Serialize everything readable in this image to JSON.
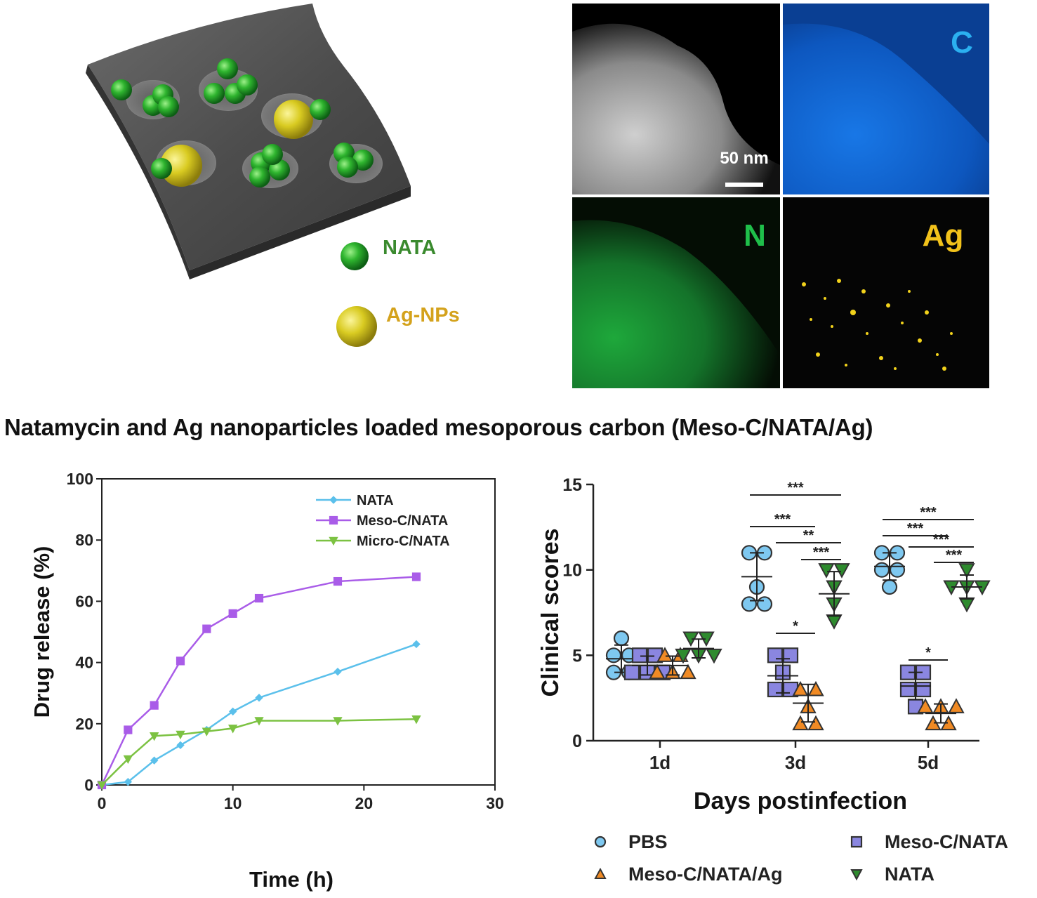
{
  "scheme": {
    "legend": [
      {
        "label": "NATA",
        "color": "#3a8a2e"
      },
      {
        "label": "Ag-NPs",
        "color": "#d4a21c"
      }
    ]
  },
  "eds": {
    "panels": [
      {
        "label": "",
        "bg": "#3a3a3a"
      },
      {
        "label": "C",
        "bg": "#0d4fa8",
        "label_color": "#2bb0f0"
      },
      {
        "label": "N",
        "bg": "#0a2a0a",
        "label_color": "#1fbf4a"
      },
      {
        "label": "Ag",
        "bg": "#050505",
        "label_color": "#f2c21b"
      }
    ],
    "scale_bar": "50 nm"
  },
  "caption": "Natamycin and Ag nanoparticles loaded mesoporous carbon (Meso-C/NATA/Ag)",
  "chart_data": [
    {
      "type": "line",
      "xlabel": "Time (h)",
      "ylabel": "Drug release (%)",
      "xlim": [
        0,
        30
      ],
      "ylim": [
        0,
        100
      ],
      "xticks": [
        0,
        10,
        20,
        30
      ],
      "yticks": [
        0,
        20,
        40,
        60,
        80,
        100
      ],
      "legend_position": "top-right",
      "series": [
        {
          "name": "NATA",
          "color": "#5bc0eb",
          "marker": "diamond",
          "x": [
            0,
            2,
            4,
            6,
            8,
            10,
            12,
            18,
            24
          ],
          "y": [
            0,
            1,
            8,
            13,
            18,
            24,
            28.5,
            37,
            46
          ]
        },
        {
          "name": "Meso-C/NATA",
          "color": "#a95ce8",
          "marker": "square",
          "x": [
            0,
            2,
            4,
            6,
            8,
            10,
            12,
            18,
            24
          ],
          "y": [
            0,
            18,
            26,
            40.5,
            51,
            56,
            61,
            66.5,
            68
          ]
        },
        {
          "name": "Micro-C/NATA",
          "color": "#7cc242",
          "marker": "triangle-down",
          "x": [
            0,
            2,
            4,
            6,
            8,
            10,
            12,
            18,
            24
          ],
          "y": [
            0,
            8.5,
            16,
            16.5,
            17.5,
            18.5,
            21,
            21,
            21.5
          ]
        }
      ]
    },
    {
      "type": "scatter",
      "xlabel": "Days postinfection",
      "ylabel": "Clinical scores",
      "ylim": [
        0,
        15
      ],
      "yticks": [
        0,
        5,
        10,
        15
      ],
      "categories": [
        "1d",
        "3d",
        "5d"
      ],
      "legend_position": "bottom",
      "series": [
        {
          "name": "PBS",
          "color": "#7ec8f0",
          "marker": "circle",
          "values": [
            [
              6,
              5,
              5,
              4,
              4
            ],
            [
              11,
              11,
              9,
              8,
              8
            ],
            [
              11,
              11,
              10,
              10,
              9
            ]
          ],
          "mean": [
            4.8,
            9.6,
            10.2
          ],
          "sd": [
            0.8,
            1.4,
            0.8
          ]
        },
        {
          "name": "Meso-C/NATA",
          "color": "#8a86e0",
          "marker": "square",
          "values": [
            [
              5,
              5,
              4,
              4,
              4
            ],
            [
              5,
              5,
              4,
              3,
              3
            ],
            [
              4,
              4,
              3,
              3,
              2
            ]
          ],
          "mean": [
            4.4,
            3.8,
            3.2
          ],
          "sd": [
            0.55,
            1.0,
            0.8
          ]
        },
        {
          "name": "Meso-C/NATA/Ag",
          "color": "#f08a24",
          "marker": "triangle",
          "values": [
            [
              5,
              5,
              4,
              4,
              4
            ],
            [
              3,
              3,
              2,
              1,
              1
            ],
            [
              2,
              2,
              2,
              1,
              1
            ]
          ],
          "mean": [
            4.4,
            2.2,
            1.6
          ],
          "sd": [
            0.55,
            1.1,
            0.55
          ]
        },
        {
          "name": "NATA",
          "color": "#2e8b2e",
          "marker": "triangle-down",
          "values": [
            [
              6,
              6,
              5,
              5,
              5
            ],
            [
              10,
              10,
              9,
              8,
              7
            ],
            [
              10,
              9,
              9,
              9,
              8
            ]
          ],
          "mean": [
            5.4,
            8.6,
            9.0
          ],
          "sd": [
            0.55,
            1.3,
            0.7
          ]
        }
      ],
      "significance": [
        {
          "day": "3d",
          "from": "PBS",
          "to": "NATA",
          "label": "***"
        },
        {
          "day": "3d",
          "from": "PBS",
          "to": "Meso-C/NATA/Ag",
          "label": "***"
        },
        {
          "day": "3d",
          "from": "Meso-C/NATA",
          "to": "NATA",
          "label": "**"
        },
        {
          "day": "3d",
          "from": "Meso-C/NATA/Ag",
          "to": "NATA",
          "label": "***"
        },
        {
          "day": "3d",
          "from": "Meso-C/NATA",
          "to": "Meso-C/NATA/Ag",
          "label": "*"
        },
        {
          "day": "5d",
          "from": "PBS",
          "to": "NATA",
          "label": "***"
        },
        {
          "day": "5d",
          "from": "PBS",
          "to": "Meso-C/NATA/Ag",
          "label": "***"
        },
        {
          "day": "5d",
          "from": "Meso-C/NATA",
          "to": "NATA",
          "label": "***"
        },
        {
          "day": "5d",
          "from": "Meso-C/NATA/Ag",
          "to": "NATA",
          "label": "***"
        },
        {
          "day": "5d",
          "from": "Meso-C/NATA",
          "to": "Meso-C/NATA/Ag",
          "label": "*"
        }
      ]
    }
  ]
}
